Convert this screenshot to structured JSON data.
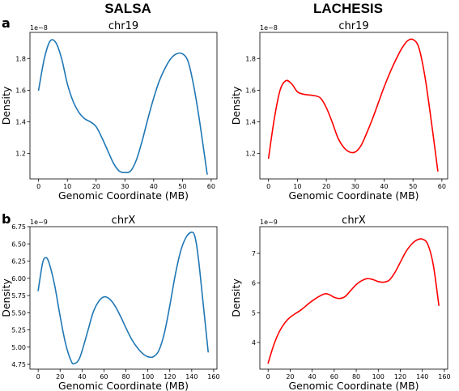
{
  "columns": {
    "left": "SALSA",
    "right": "LACHESIS"
  },
  "panel_labels": {
    "row1": "a",
    "row2": "b"
  },
  "colors": {
    "salsa": "#1f77b4",
    "lachesis": "#ff0000"
  },
  "chart_data": [
    {
      "type": "line",
      "title": "chr19",
      "xlabel": "Genomic Coordinate (MB)",
      "ylabel": "Density",
      "exponent_label": "1e−8",
      "xlim": [
        -3,
        62
      ],
      "ylim": [
        1.04,
        1.965
      ],
      "xticks": [
        0,
        10,
        20,
        30,
        40,
        50,
        60
      ],
      "yticks": [
        1.2,
        1.4,
        1.6,
        1.8
      ],
      "ytick_labels": [
        "1.2",
        "1.4",
        "1.6",
        "1.8"
      ],
      "color": "#1f77b4",
      "x": [
        0,
        2,
        4,
        6,
        8,
        10,
        12,
        14,
        16,
        18,
        20,
        22,
        24,
        26,
        28,
        30,
        32,
        34,
        36,
        38,
        40,
        42,
        44,
        46,
        48,
        50,
        52,
        54,
        56,
        58.6
      ],
      "y": [
        1.6,
        1.8,
        1.91,
        1.9,
        1.8,
        1.64,
        1.53,
        1.46,
        1.42,
        1.4,
        1.37,
        1.3,
        1.22,
        1.14,
        1.09,
        1.08,
        1.09,
        1.16,
        1.28,
        1.42,
        1.55,
        1.66,
        1.74,
        1.8,
        1.83,
        1.83,
        1.78,
        1.62,
        1.4,
        1.07
      ]
    },
    {
      "type": "line",
      "title": "chr19",
      "xlabel": "Genomic Coordinate (MB)",
      "ylabel": "Density",
      "exponent_label": "1e−8",
      "xlim": [
        -3,
        62
      ],
      "ylim": [
        1.04,
        1.965
      ],
      "xticks": [
        0,
        10,
        20,
        30,
        40,
        50,
        60
      ],
      "yticks": [
        1.2,
        1.4,
        1.6,
        1.8
      ],
      "ytick_labels": [
        "1.2",
        "1.4",
        "1.6",
        "1.8"
      ],
      "color": "#ff0000",
      "x": [
        0,
        2,
        4,
        6,
        8,
        10,
        12,
        14,
        16,
        18,
        20,
        22,
        24,
        26,
        28,
        30,
        32,
        34,
        36,
        38,
        40,
        42,
        44,
        46,
        48,
        50,
        52,
        54,
        56,
        58.6
      ],
      "y": [
        1.17,
        1.42,
        1.6,
        1.66,
        1.64,
        1.59,
        1.575,
        1.57,
        1.565,
        1.55,
        1.49,
        1.4,
        1.3,
        1.24,
        1.21,
        1.21,
        1.25,
        1.33,
        1.42,
        1.52,
        1.62,
        1.71,
        1.79,
        1.86,
        1.91,
        1.92,
        1.87,
        1.7,
        1.45,
        1.09
      ]
    },
    {
      "type": "line",
      "title": "chrX",
      "xlabel": "Genomic Coordinate (MB)",
      "ylabel": "Density",
      "exponent_label": "1e−9",
      "xlim": [
        -7.5,
        163
      ],
      "ylim": [
        4.68,
        6.75
      ],
      "xticks": [
        0,
        20,
        40,
        60,
        80,
        100,
        120,
        140,
        160
      ],
      "yticks": [
        4.75,
        5.0,
        5.25,
        5.5,
        5.75,
        6.0,
        6.25,
        6.5,
        6.75
      ],
      "ytick_labels": [
        "4.75",
        "5.00",
        "5.25",
        "5.50",
        "5.75",
        "6.00",
        "6.25",
        "6.50",
        "6.75"
      ],
      "color": "#1f77b4",
      "x": [
        0,
        4,
        7,
        10,
        15,
        20,
        25,
        30,
        33,
        38,
        45,
        50,
        55,
        60,
        65,
        70,
        75,
        80,
        85,
        90,
        95,
        100,
        105,
        110,
        115,
        120,
        125,
        130,
        135,
        140,
        143,
        146,
        150,
        155
      ],
      "y": [
        5.82,
        6.22,
        6.3,
        6.22,
        5.9,
        5.45,
        5.05,
        4.8,
        4.76,
        4.85,
        5.22,
        5.5,
        5.66,
        5.73,
        5.7,
        5.6,
        5.45,
        5.28,
        5.12,
        5.0,
        4.91,
        4.86,
        4.86,
        4.95,
        5.2,
        5.6,
        6.05,
        6.4,
        6.6,
        6.67,
        6.6,
        6.3,
        5.7,
        4.93
      ]
    },
    {
      "type": "line",
      "title": "chrX",
      "xlabel": "Genomic Coordinate (MB)",
      "ylabel": "Density",
      "exponent_label": "1e−9",
      "xlim": [
        -7.5,
        163
      ],
      "ylim": [
        3.1,
        7.9
      ],
      "xticks": [
        0,
        20,
        40,
        60,
        80,
        100,
        120,
        140,
        160
      ],
      "yticks": [
        4,
        5,
        6,
        7
      ],
      "ytick_labels": [
        "4",
        "5",
        "6",
        "7"
      ],
      "color": "#ff0000",
      "x": [
        0,
        5,
        10,
        15,
        20,
        30,
        40,
        50,
        55,
        60,
        65,
        70,
        75,
        80,
        85,
        90,
        95,
        100,
        105,
        110,
        115,
        120,
        125,
        130,
        135,
        140,
        145,
        150,
        155
      ],
      "y": [
        3.3,
        3.9,
        4.35,
        4.65,
        4.85,
        5.1,
        5.4,
        5.62,
        5.62,
        5.52,
        5.48,
        5.55,
        5.75,
        5.95,
        6.08,
        6.15,
        6.12,
        6.05,
        6.03,
        6.1,
        6.35,
        6.7,
        7.05,
        7.3,
        7.45,
        7.48,
        7.3,
        6.6,
        5.25
      ]
    }
  ]
}
